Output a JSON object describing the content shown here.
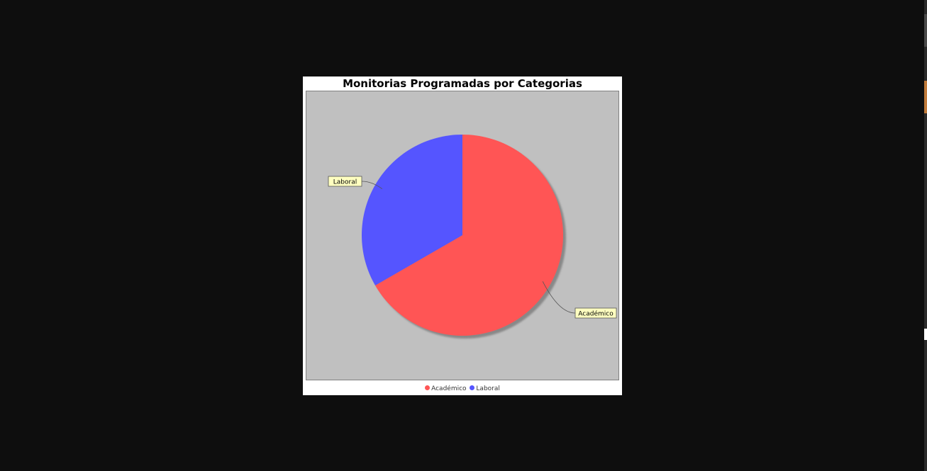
{
  "chart_data": {
    "type": "pie",
    "title": "Monitorias Programadas por Categorias",
    "slices": [
      {
        "label": "Académico",
        "value": 2,
        "color": "#ff5555"
      },
      {
        "label": "Laboral",
        "value": 1,
        "color": "#5555ff"
      }
    ],
    "legend": {
      "position": "bottom",
      "items": [
        "Académico",
        "Laboral"
      ]
    },
    "background_color": "#c0c0c0",
    "label_box_color": "#ffffc0"
  }
}
